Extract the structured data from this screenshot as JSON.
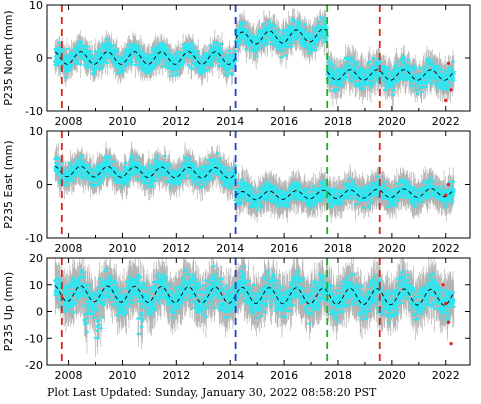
{
  "chart_data": [
    {
      "type": "scatter",
      "ylabel": "P235 North (mm)",
      "ylim": [
        -10,
        10
      ],
      "yticks": [
        -10,
        0,
        10
      ],
      "xlim": [
        2007.2,
        2022.9
      ],
      "xticks": [
        2008,
        2010,
        2012,
        2014,
        2016,
        2018,
        2020,
        2022
      ],
      "grid": false,
      "segments": [
        {
          "x": [
            2007.5,
            2014.2
          ],
          "mean": 0.0,
          "seasonal_amp": 1.2,
          "noise": 1.3,
          "error_bar": 1.8
        },
        {
          "x": [
            2014.2,
            2017.6
          ],
          "mean": 4.0,
          "trend": 0.2,
          "seasonal_amp": 1.2,
          "noise": 1.3,
          "error_bar": 2.0
        },
        {
          "x": [
            2017.6,
            2022.3
          ],
          "mean": -3.2,
          "seasonal_amp": 1.0,
          "noise": 1.4,
          "error_bar": 2.2
        }
      ],
      "outliers": {
        "x": [
          2022.0,
          2022.1,
          2022.2
        ],
        "values": [
          -8,
          -1,
          -6
        ]
      },
      "vertical_lines": [
        {
          "x": 2007.75,
          "color": "#e0201c"
        },
        {
          "x": 2014.2,
          "color": "#1f3ed6"
        },
        {
          "x": 2017.6,
          "color": "#1db31a"
        },
        {
          "x": 2019.55,
          "color": "#e0201c"
        }
      ]
    },
    {
      "type": "scatter",
      "ylabel": "P235 East (mm)",
      "ylim": [
        -10,
        10
      ],
      "yticks": [
        -10,
        0,
        10
      ],
      "xlim": [
        2007.2,
        2022.9
      ],
      "xticks": [
        2008,
        2010,
        2012,
        2014,
        2016,
        2018,
        2020,
        2022
      ],
      "grid": false,
      "segments": [
        {
          "x": [
            2007.5,
            2014.2
          ],
          "mean": 2.3,
          "trend": -0.05,
          "seasonal_amp": 1.0,
          "noise": 1.2,
          "error_bar": 2.0
        },
        {
          "x": [
            2014.2,
            2022.3
          ],
          "mean": -1.8,
          "trend": 0.08,
          "seasonal_amp": 0.8,
          "noise": 1.1,
          "error_bar": 2.2
        }
      ],
      "outliers": {
        "x": [
          2022.0,
          2022.1
        ],
        "values": [
          -2,
          0
        ]
      },
      "vertical_lines": [
        {
          "x": 2007.75,
          "color": "#e0201c"
        },
        {
          "x": 2014.2,
          "color": "#1f3ed6"
        },
        {
          "x": 2017.6,
          "color": "#1db31a"
        },
        {
          "x": 2019.55,
          "color": "#e0201c"
        }
      ]
    },
    {
      "type": "scatter",
      "ylabel": "P235 Up (mm)",
      "ylim": [
        -20,
        20
      ],
      "yticks": [
        -20,
        -10,
        0,
        10,
        20
      ],
      "xlim": [
        2007.2,
        2022.9
      ],
      "xticks": [
        2008,
        2010,
        2012,
        2014,
        2016,
        2018,
        2020,
        2022
      ],
      "grid": false,
      "segments": [
        {
          "x": [
            2007.5,
            2022.3
          ],
          "mean": 6.0,
          "trend": -0.1,
          "seasonal_amp": 3.0,
          "noise": 3.5,
          "error_bar": 6.0
        }
      ],
      "dips": [
        {
          "x": 2008.7,
          "depth": -14
        },
        {
          "x": 2009.1,
          "depth": -16
        },
        {
          "x": 2010.7,
          "depth": -15
        },
        {
          "x": 2011.1,
          "depth": -8
        },
        {
          "x": 2013.7,
          "depth": -6
        },
        {
          "x": 2016.1,
          "depth": -6
        },
        {
          "x": 2019.6,
          "depth": -8
        },
        {
          "x": 2021.9,
          "depth": -6
        }
      ],
      "outliers": {
        "x": [
          2021.9,
          2022.0,
          2022.1,
          2022.2
        ],
        "values": [
          10,
          3,
          -4,
          -12
        ]
      },
      "vertical_lines": [
        {
          "x": 2007.75,
          "color": "#e0201c"
        },
        {
          "x": 2014.2,
          "color": "#1f3ed6"
        },
        {
          "x": 2017.6,
          "color": "#1db31a"
        },
        {
          "x": 2019.55,
          "color": "#e0201c"
        }
      ]
    }
  ],
  "colors": {
    "points": "#2ee6f0",
    "error_bars": "#b4b4b4",
    "model_line": "#000000",
    "outliers": "#e0201c"
  },
  "footer": {
    "label": "Plot Last Updated:",
    "timestamp": "Sunday, January 30, 2022 08:58:20 PST"
  }
}
